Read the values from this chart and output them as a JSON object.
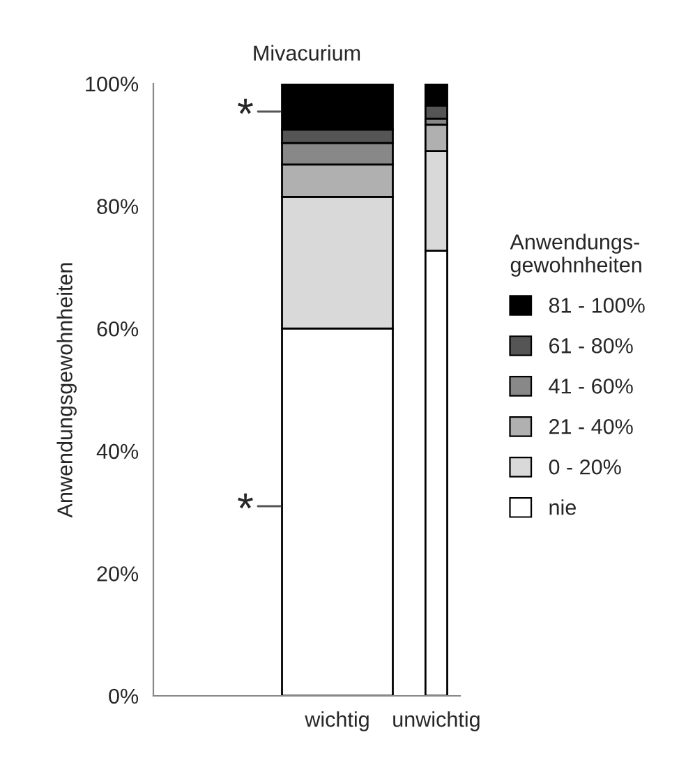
{
  "chart_data": {
    "type": "bar",
    "stacked": true,
    "title": "Mivacurium",
    "ylabel": "Anwendungsgewohnheiten",
    "legend_title": "Anwendungs-\ngewohnheiten",
    "legend": "right",
    "grid": false,
    "categories": [
      "wichtig",
      "unwichtig"
    ],
    "series": [
      {
        "name": "nie",
        "color": "#ffffff",
        "values": [
          60,
          72.7
        ]
      },
      {
        "name": "0 - 20%",
        "color": "#d9d9d9",
        "values": [
          21.5,
          16.3
        ]
      },
      {
        "name": "21 - 40%",
        "color": "#b0b0b0",
        "values": [
          5.3,
          4.3
        ]
      },
      {
        "name": "41 - 60%",
        "color": "#888888",
        "values": [
          3.5,
          1.0
        ]
      },
      {
        "name": "61 - 80%",
        "color": "#555555",
        "values": [
          2.2,
          2.1
        ]
      },
      {
        "name": "81 - 100%",
        "color": "#000000",
        "values": [
          7.5,
          3.6
        ]
      }
    ],
    "ylim": [
      0,
      100
    ],
    "yticks": [
      {
        "value": 0,
        "label": "0%"
      },
      {
        "value": 20,
        "label": "20%"
      },
      {
        "value": 40,
        "label": "40%"
      },
      {
        "value": 60,
        "label": "60%"
      },
      {
        "value": 80,
        "label": "80%"
      },
      {
        "value": 100,
        "label": "100%"
      }
    ],
    "annotations": [
      "*",
      "*"
    ]
  }
}
